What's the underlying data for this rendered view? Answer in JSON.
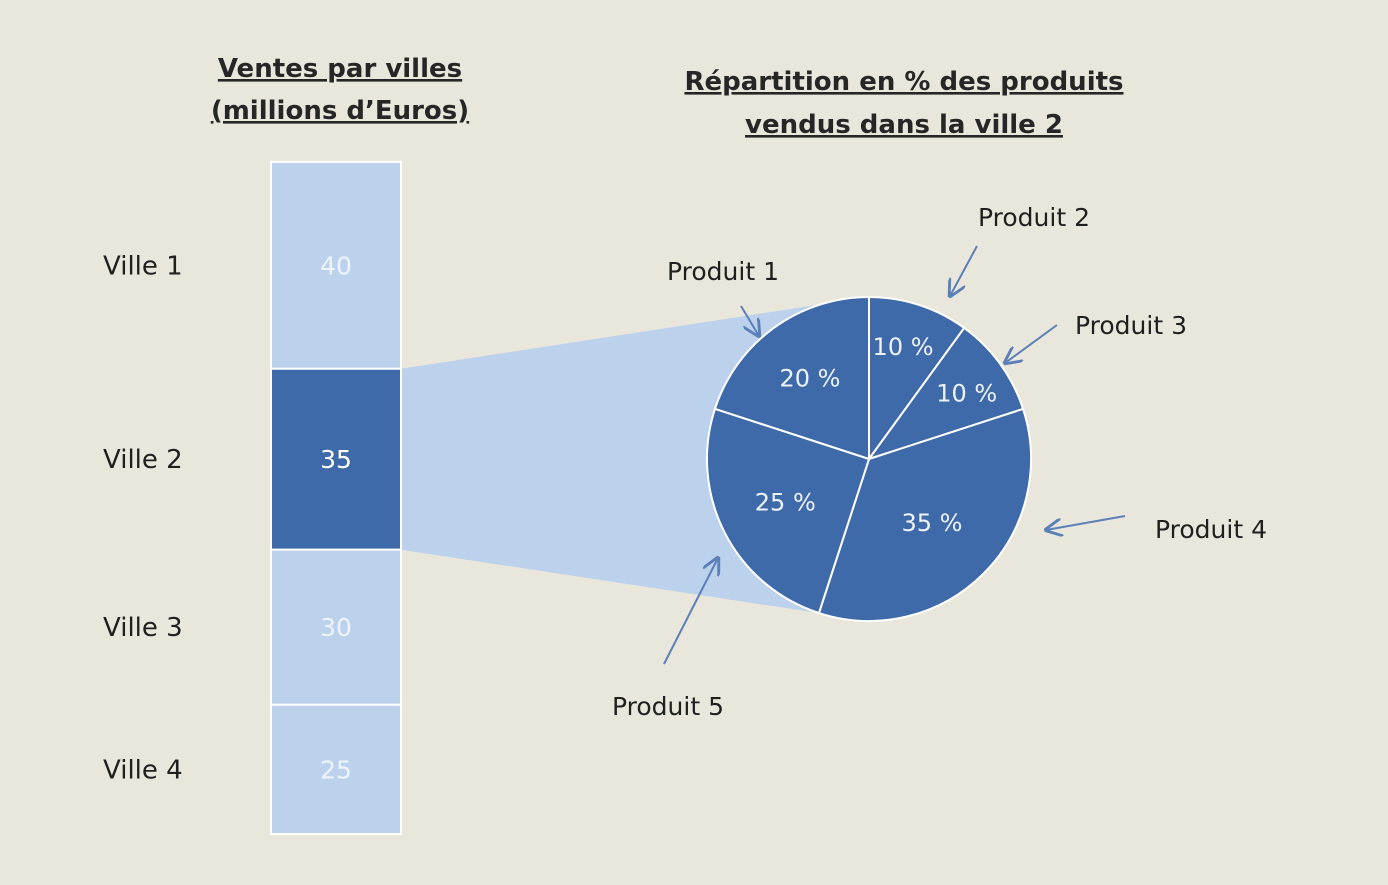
{
  "colors": {
    "background": "#e9e6dc",
    "bar_light": "#bcd1eb",
    "bar_highlight": "#3e6aa9",
    "pie_fill": "#3e6aa9",
    "connector": "#bcd1eb",
    "arrow": "#5b7fb8"
  },
  "chart_data": [
    {
      "type": "bar",
      "title_lines": [
        "Ventes par villes",
        "(millions  d’Euros)"
      ],
      "stacked": true,
      "categories": [
        "Ville 1",
        "Ville 2",
        "Ville 3",
        "Ville 4"
      ],
      "values": [
        40,
        35,
        30,
        25
      ],
      "value_labels": [
        "40",
        "35",
        "30",
        "25"
      ],
      "highlighted_category": "Ville 2"
    },
    {
      "type": "pie",
      "title_lines": [
        "Répartition en % des produits",
        "vendus dans la ville  2"
      ],
      "categories": [
        "Produit 1",
        "Produit 2",
        "Produit 3",
        "Produit 4",
        "Produit 5"
      ],
      "values": [
        20,
        10,
        10,
        35,
        25
      ],
      "value_labels": [
        "20 %",
        "10 %",
        "10 %",
        "35 %",
        "25 %"
      ]
    }
  ]
}
